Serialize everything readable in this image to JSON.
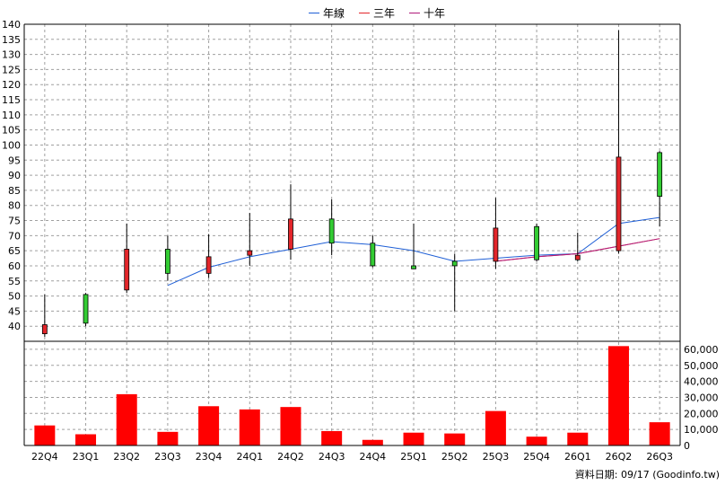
{
  "legend": {
    "items": [
      {
        "label": "年線",
        "color": "#1f5fd6"
      },
      {
        "label": "三年",
        "color": "#e3262b"
      },
      {
        "label": "十年",
        "color": "#b01a7a"
      }
    ]
  },
  "footer": {
    "text": "資料日期: 09/17  (Goodinfo.tw)"
  },
  "chart_data": {
    "type": "candlestick",
    "categories": [
      "22Q4",
      "23Q1",
      "23Q2",
      "23Q3",
      "23Q4",
      "24Q1",
      "24Q2",
      "24Q3",
      "24Q4",
      "25Q1",
      "25Q2",
      "25Q3",
      "25Q4",
      "26Q1",
      "26Q2",
      "26Q3"
    ],
    "price_axis": {
      "min": 35,
      "max": 140,
      "ticks": [
        40,
        45,
        50,
        55,
        60,
        65,
        70,
        75,
        80,
        85,
        90,
        95,
        100,
        105,
        110,
        115,
        120,
        125,
        130,
        135,
        140
      ]
    },
    "volume_axis": {
      "min": 0,
      "max": 65000,
      "ticks": [
        0,
        10000,
        20000,
        30000,
        40000,
        50000,
        60000
      ],
      "tick_labels": [
        "0",
        "10,000",
        "20,000",
        "30,000",
        "40,000",
        "50,000",
        "60,000"
      ]
    },
    "candles": [
      {
        "q": "22Q4",
        "open": 40.5,
        "close": 37.5,
        "high": 50.5,
        "low": 36.5
      },
      {
        "q": "23Q1",
        "open": 41.0,
        "close": 50.5,
        "high": 51.0,
        "low": 40.0
      },
      {
        "q": "23Q2",
        "open": 65.5,
        "close": 52.0,
        "high": 74.0,
        "low": 51.0
      },
      {
        "q": "23Q3",
        "open": 57.5,
        "close": 65.5,
        "high": 70.0,
        "low": 55.0
      },
      {
        "q": "23Q4",
        "open": 63.0,
        "close": 57.5,
        "high": 70.5,
        "low": 56.0
      },
      {
        "q": "24Q1",
        "open": 65.0,
        "close": 63.5,
        "high": 77.5,
        "low": 60.0
      },
      {
        "q": "24Q2",
        "open": 75.5,
        "close": 65.5,
        "high": 87.0,
        "low": 62.0
      },
      {
        "q": "24Q3",
        "open": 67.5,
        "close": 75.5,
        "high": 82.0,
        "low": 63.5
      },
      {
        "q": "24Q4",
        "open": 60.0,
        "close": 67.5,
        "high": 70.0,
        "low": 59.5
      },
      {
        "q": "25Q1",
        "open": 59.0,
        "close": 60.0,
        "high": 74.0,
        "low": 59.0
      },
      {
        "q": "25Q2",
        "open": 60.0,
        "close": 61.5,
        "high": 64.0,
        "low": 45.0
      },
      {
        "q": "25Q3",
        "open": 72.5,
        "close": 61.5,
        "high": 82.5,
        "low": 59.0
      },
      {
        "q": "25Q4",
        "open": 62.0,
        "close": 73.0,
        "high": 74.0,
        "low": 61.5
      },
      {
        "q": "26Q1",
        "open": 63.5,
        "close": 62.0,
        "high": 71.0,
        "low": 61.5
      },
      {
        "q": "26Q2",
        "open": 96.0,
        "close": 65.0,
        "high": 138.0,
        "low": 64.0
      },
      {
        "q": "26Q3",
        "open": 83.0,
        "close": 97.5,
        "high": 98.0,
        "low": 73.0
      }
    ],
    "series": [
      {
        "name": "年線",
        "color": "#1f5fd6",
        "points": [
          {
            "q": "23Q3",
            "v": 53.5
          },
          {
            "q": "23Q4",
            "v": 59.5
          },
          {
            "q": "24Q1",
            "v": 63.0
          },
          {
            "q": "24Q2",
            "v": 65.5
          },
          {
            "q": "24Q3",
            "v": 68.0
          },
          {
            "q": "24Q4",
            "v": 67.0
          },
          {
            "q": "25Q1",
            "v": 65.0
          },
          {
            "q": "25Q2",
            "v": 61.5
          },
          {
            "q": "25Q3",
            "v": 62.5
          },
          {
            "q": "25Q4",
            "v": 63.5
          },
          {
            "q": "26Q1",
            "v": 64.0
          },
          {
            "q": "26Q2",
            "v": 74.0
          },
          {
            "q": "26Q3",
            "v": 76.0
          }
        ]
      },
      {
        "name": "三年",
        "color": "#e3262b",
        "points": [
          {
            "q": "25Q3",
            "v": 61.5
          },
          {
            "q": "25Q4",
            "v": 63.0
          },
          {
            "q": "26Q1",
            "v": 64.0
          },
          {
            "q": "26Q2",
            "v": 66.5
          },
          {
            "q": "26Q3",
            "v": 69.0
          }
        ]
      },
      {
        "name": "十年",
        "color": "#b01a7a",
        "points": [
          {
            "q": "25Q3",
            "v": 61.5
          },
          {
            "q": "25Q4",
            "v": 63.0
          },
          {
            "q": "26Q1",
            "v": 64.0
          },
          {
            "q": "26Q2",
            "v": 66.5
          },
          {
            "q": "26Q3",
            "v": 69.0
          }
        ]
      }
    ],
    "volume": {
      "color": "#ff0000",
      "values": [
        12500,
        7000,
        32000,
        8500,
        24500,
        22500,
        24000,
        9000,
        3500,
        8000,
        7500,
        21500,
        5500,
        8000,
        62000,
        14500
      ]
    },
    "up_color": "#33cc33",
    "down_color": "#e3262b",
    "grid": true
  }
}
